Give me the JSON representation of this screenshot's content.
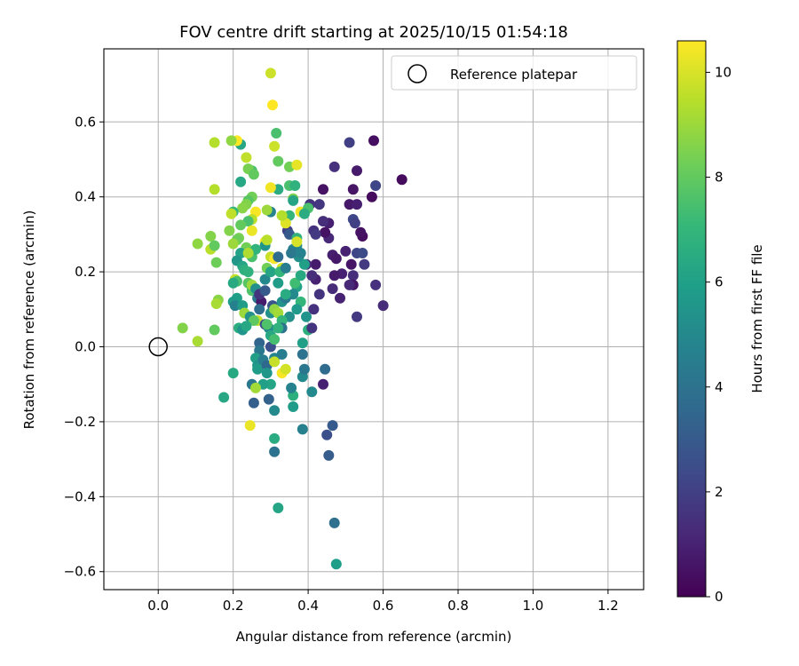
{
  "chart_data": {
    "type": "scatter",
    "title": "FOV centre drift starting at 2025/10/15 01:54:18",
    "xlabel": "Angular distance from reference (arcmin)",
    "ylabel": "Rotation from reference (arcmin)",
    "xlim": [
      -0.145,
      1.295
    ],
    "ylim": [
      -0.648,
      0.795
    ],
    "xticks": [
      0.0,
      0.2,
      0.4,
      0.6,
      0.8,
      1.0,
      1.2
    ],
    "xtick_labels": [
      "0.0",
      "0.2",
      "0.4",
      "0.6",
      "0.8",
      "1.0",
      "1.2"
    ],
    "yticks": [
      -0.6,
      -0.4,
      -0.2,
      0.0,
      0.2,
      0.4,
      0.6
    ],
    "ytick_labels": [
      "−0.6",
      "−0.4",
      "−0.2",
      "0.0",
      "0.2",
      "0.4",
      "0.6"
    ],
    "grid": true,
    "legend": {
      "position": "top-right",
      "entries": [
        "Reference platepar"
      ]
    },
    "reference_point": {
      "x": 0.0,
      "y": 0.0,
      "label": "Reference platepar"
    },
    "colorbar": {
      "label": "Hours from first FF file",
      "range": [
        0,
        10.6
      ],
      "ticks": [
        0,
        2,
        4,
        6,
        8,
        10
      ],
      "tick_labels": [
        "0",
        "2",
        "4",
        "6",
        "8",
        "10"
      ]
    },
    "colormap": [
      "#440154",
      "#482878",
      "#3e4a89",
      "#31688e",
      "#26828e",
      "#1f9e89",
      "#35b779",
      "#6ece58",
      "#b5de2b",
      "#fde725"
    ],
    "points": [
      [
        0.65,
        0.446,
        0.3
      ],
      [
        0.575,
        0.55,
        0.4
      ],
      [
        0.57,
        0.4,
        0.3
      ],
      [
        0.545,
        0.295,
        0.4
      ],
      [
        0.52,
        0.42,
        0.6
      ],
      [
        0.53,
        0.47,
        0.8
      ],
      [
        0.47,
        0.48,
        1.5
      ],
      [
        0.44,
        0.42,
        0.5
      ],
      [
        0.51,
        0.38,
        0.7
      ],
      [
        0.53,
        0.38,
        0.9
      ],
      [
        0.54,
        0.305,
        0.5
      ],
      [
        0.58,
        0.43,
        2.2
      ],
      [
        0.51,
        0.545,
        2.0
      ],
      [
        0.52,
        0.34,
        2.3
      ],
      [
        0.525,
        0.33,
        2.0
      ],
      [
        0.5,
        0.255,
        1.0
      ],
      [
        0.53,
        0.25,
        2.2
      ],
      [
        0.545,
        0.25,
        2.4
      ],
      [
        0.55,
        0.22,
        1.8
      ],
      [
        0.515,
        0.22,
        0.6
      ],
      [
        0.52,
        0.19,
        1.4
      ],
      [
        0.58,
        0.165,
        1.5
      ],
      [
        0.6,
        0.11,
        1.3
      ],
      [
        0.52,
        0.165,
        0.6
      ],
      [
        0.51,
        0.165,
        1.2
      ],
      [
        0.49,
        0.195,
        1.0
      ],
      [
        0.47,
        0.19,
        0.8
      ],
      [
        0.465,
        0.245,
        0.9
      ],
      [
        0.475,
        0.235,
        0.7
      ],
      [
        0.455,
        0.29,
        1.2
      ],
      [
        0.445,
        0.305,
        0.5
      ],
      [
        0.455,
        0.33,
        0.9
      ],
      [
        0.44,
        0.335,
        1.4
      ],
      [
        0.43,
        0.38,
        1.7
      ],
      [
        0.405,
        0.38,
        1.6
      ],
      [
        0.415,
        0.31,
        1.5
      ],
      [
        0.42,
        0.3,
        1.8
      ],
      [
        0.42,
        0.22,
        0.8
      ],
      [
        0.395,
        0.22,
        1.3
      ],
      [
        0.42,
        0.18,
        1.0
      ],
      [
        0.41,
        0.19,
        1.4
      ],
      [
        0.43,
        0.14,
        1.6
      ],
      [
        0.415,
        0.1,
        1.5
      ],
      [
        0.465,
        0.155,
        1.3
      ],
      [
        0.485,
        0.13,
        1.0
      ],
      [
        0.53,
        0.08,
        1.8
      ],
      [
        0.44,
        -0.1,
        1.0
      ],
      [
        0.45,
        -0.235,
        2.6
      ],
      [
        0.465,
        -0.21,
        3.0
      ],
      [
        0.455,
        -0.29,
        3.1
      ],
      [
        0.47,
        -0.47,
        3.9
      ],
      [
        0.475,
        -0.58,
        5.9
      ],
      [
        0.445,
        -0.06,
        3.7
      ],
      [
        0.41,
        -0.12,
        5.0
      ],
      [
        0.385,
        -0.22,
        4.6
      ],
      [
        0.36,
        -0.16,
        5.8
      ],
      [
        0.36,
        -0.13,
        6.7
      ],
      [
        0.355,
        -0.11,
        4.7
      ],
      [
        0.385,
        -0.08,
        5.0
      ],
      [
        0.39,
        -0.06,
        4.2
      ],
      [
        0.385,
        -0.02,
        4.0
      ],
      [
        0.385,
        0.01,
        6.0
      ],
      [
        0.4,
        0.045,
        6.7
      ],
      [
        0.41,
        0.05,
        1.6
      ],
      [
        0.395,
        0.08,
        5.5
      ],
      [
        0.38,
        0.12,
        7.0
      ],
      [
        0.37,
        0.1,
        5.7
      ],
      [
        0.37,
        0.16,
        6.1
      ],
      [
        0.36,
        0.14,
        5.0
      ],
      [
        0.365,
        0.17,
        7.3
      ],
      [
        0.38,
        0.19,
        6.4
      ],
      [
        0.39,
        0.22,
        6.0
      ],
      [
        0.375,
        0.24,
        5.3
      ],
      [
        0.37,
        0.27,
        5.0
      ],
      [
        0.36,
        0.26,
        4.6
      ],
      [
        0.355,
        0.25,
        4.2
      ],
      [
        0.345,
        0.31,
        2.0
      ],
      [
        0.35,
        0.3,
        3.0
      ],
      [
        0.37,
        0.29,
        6.8
      ],
      [
        0.37,
        0.28,
        10.0
      ],
      [
        0.38,
        0.36,
        10.4
      ],
      [
        0.4,
        0.37,
        7.5
      ],
      [
        0.39,
        0.355,
        6.5
      ],
      [
        0.35,
        0.35,
        7.0
      ],
      [
        0.34,
        0.33,
        10.1
      ],
      [
        0.33,
        0.35,
        9.4
      ],
      [
        0.3,
        0.36,
        4.8
      ],
      [
        0.29,
        0.365,
        9.0
      ],
      [
        0.32,
        0.42,
        6.5
      ],
      [
        0.3,
        0.425,
        10.4
      ],
      [
        0.35,
        0.43,
        7.5
      ],
      [
        0.365,
        0.43,
        6.8
      ],
      [
        0.36,
        0.395,
        8.5
      ],
      [
        0.36,
        0.39,
        6.2
      ],
      [
        0.35,
        0.48,
        8.3
      ],
      [
        0.37,
        0.485,
        10.2
      ],
      [
        0.32,
        0.495,
        8.0
      ],
      [
        0.31,
        0.535,
        9.8
      ],
      [
        0.315,
        0.57,
        7.5
      ],
      [
        0.305,
        0.645,
        10.6
      ],
      [
        0.3,
        0.73,
        9.8
      ],
      [
        0.22,
        0.54,
        6.3
      ],
      [
        0.21,
        0.55,
        10.6
      ],
      [
        0.195,
        0.55,
        8.8
      ],
      [
        0.15,
        0.545,
        9.4
      ],
      [
        0.235,
        0.505,
        9.6
      ],
      [
        0.25,
        0.47,
        7.5
      ],
      [
        0.24,
        0.475,
        8.4
      ],
      [
        0.22,
        0.44,
        6.3
      ],
      [
        0.255,
        0.46,
        8.0
      ],
      [
        0.15,
        0.42,
        9.4
      ],
      [
        0.25,
        0.4,
        8.3
      ],
      [
        0.24,
        0.39,
        7.8
      ],
      [
        0.235,
        0.38,
        8.6
      ],
      [
        0.225,
        0.37,
        8.7
      ],
      [
        0.2,
        0.36,
        7.1
      ],
      [
        0.195,
        0.355,
        9.6
      ],
      [
        0.26,
        0.36,
        10.5
      ],
      [
        0.25,
        0.34,
        9.5
      ],
      [
        0.24,
        0.335,
        7.5
      ],
      [
        0.22,
        0.325,
        8.0
      ],
      [
        0.19,
        0.31,
        8.6
      ],
      [
        0.215,
        0.29,
        8.4
      ],
      [
        0.21,
        0.285,
        8.2
      ],
      [
        0.2,
        0.275,
        9.0
      ],
      [
        0.285,
        0.28,
        10.5
      ],
      [
        0.285,
        0.27,
        5.5
      ],
      [
        0.25,
        0.31,
        10.3
      ],
      [
        0.14,
        0.295,
        8.6
      ],
      [
        0.105,
        0.275,
        8.8
      ],
      [
        0.14,
        0.26,
        9.5
      ],
      [
        0.15,
        0.27,
        8.0
      ],
      [
        0.155,
        0.225,
        8.2
      ],
      [
        0.235,
        0.265,
        8.3
      ],
      [
        0.22,
        0.25,
        6.1
      ],
      [
        0.21,
        0.23,
        5.6
      ],
      [
        0.225,
        0.215,
        6.2
      ],
      [
        0.25,
        0.24,
        7.5
      ],
      [
        0.23,
        0.205,
        6.7
      ],
      [
        0.24,
        0.2,
        6.8
      ],
      [
        0.205,
        0.18,
        9.7
      ],
      [
        0.21,
        0.175,
        7.5
      ],
      [
        0.2,
        0.17,
        6.4
      ],
      [
        0.24,
        0.17,
        7.8
      ],
      [
        0.25,
        0.15,
        7.6
      ],
      [
        0.25,
        0.165,
        9.0
      ],
      [
        0.26,
        0.155,
        5.3
      ],
      [
        0.265,
        0.13,
        4.2
      ],
      [
        0.275,
        0.12,
        0.8
      ],
      [
        0.27,
        0.1,
        3.8
      ],
      [
        0.21,
        0.13,
        6.0
      ],
      [
        0.2,
        0.12,
        5.8
      ],
      [
        0.205,
        0.11,
        4.6
      ],
      [
        0.225,
        0.11,
        5.8
      ],
      [
        0.23,
        0.09,
        9.0
      ],
      [
        0.245,
        0.08,
        5.4
      ],
      [
        0.265,
        0.07,
        9.7
      ],
      [
        0.255,
        0.07,
        7.9
      ],
      [
        0.285,
        0.06,
        2.5
      ],
      [
        0.295,
        0.05,
        5.0
      ],
      [
        0.29,
        0.06,
        7.6
      ],
      [
        0.215,
        0.05,
        6.6
      ],
      [
        0.225,
        0.045,
        5.5
      ],
      [
        0.235,
        0.055,
        6.3
      ],
      [
        0.16,
        0.125,
        8.7
      ],
      [
        0.155,
        0.115,
        9.2
      ],
      [
        0.065,
        0.05,
        8.6
      ],
      [
        0.105,
        0.015,
        9.2
      ],
      [
        0.15,
        0.045,
        8.0
      ],
      [
        0.3,
        0.09,
        5.3
      ],
      [
        0.305,
        0.11,
        2.8
      ],
      [
        0.31,
        0.1,
        8.8
      ],
      [
        0.32,
        0.09,
        9.1
      ],
      [
        0.33,
        0.12,
        5.4
      ],
      [
        0.34,
        0.13,
        4.3
      ],
      [
        0.34,
        0.14,
        6.5
      ],
      [
        0.35,
        0.08,
        5.3
      ],
      [
        0.33,
        0.07,
        7.0
      ],
      [
        0.33,
        0.05,
        4.0
      ],
      [
        0.32,
        0.05,
        6.8
      ],
      [
        0.3,
        0.03,
        6.3
      ],
      [
        0.3,
        0.0,
        2.6
      ],
      [
        0.31,
        0.02,
        7.4
      ],
      [
        0.27,
        0.01,
        3.4
      ],
      [
        0.27,
        -0.01,
        4.2
      ],
      [
        0.26,
        -0.03,
        6.0
      ],
      [
        0.265,
        -0.05,
        5.5
      ],
      [
        0.265,
        -0.06,
        5.8
      ],
      [
        0.28,
        -0.035,
        4.5
      ],
      [
        0.29,
        -0.05,
        3.6
      ],
      [
        0.29,
        -0.07,
        5.6
      ],
      [
        0.3,
        -0.1,
        6.2
      ],
      [
        0.31,
        -0.03,
        4.8
      ],
      [
        0.31,
        -0.04,
        9.7
      ],
      [
        0.33,
        -0.07,
        10.5
      ],
      [
        0.34,
        -0.06,
        9.9
      ],
      [
        0.33,
        -0.02,
        4.5
      ],
      [
        0.28,
        -0.1,
        6.0
      ],
      [
        0.25,
        -0.1,
        4.2
      ],
      [
        0.26,
        -0.11,
        9.1
      ],
      [
        0.295,
        -0.14,
        3.3
      ],
      [
        0.255,
        -0.15,
        3.2
      ],
      [
        0.31,
        -0.17,
        5.0
      ],
      [
        0.245,
        -0.21,
        10.3
      ],
      [
        0.31,
        -0.245,
        6.5
      ],
      [
        0.31,
        -0.28,
        4.0
      ],
      [
        0.32,
        -0.43,
        6.2
      ],
      [
        0.2,
        -0.07,
        6.4
      ],
      [
        0.175,
        -0.135,
        6.3
      ],
      [
        0.27,
        0.14,
        1.6
      ],
      [
        0.285,
        0.15,
        3.0
      ],
      [
        0.285,
        0.18,
        5.0
      ],
      [
        0.29,
        0.21,
        8.3
      ],
      [
        0.3,
        0.2,
        6.2
      ],
      [
        0.3,
        0.24,
        9.7
      ],
      [
        0.31,
        0.235,
        10.5
      ],
      [
        0.32,
        0.24,
        3.7
      ],
      [
        0.33,
        0.21,
        9.9
      ],
      [
        0.325,
        0.2,
        7.0
      ],
      [
        0.32,
        0.17,
        5.8
      ],
      [
        0.34,
        0.21,
        4.5
      ],
      [
        0.38,
        0.25,
        4.7
      ],
      [
        0.29,
        0.285,
        9.5
      ],
      [
        0.26,
        0.26,
        6.9
      ],
      [
        0.24,
        0.25,
        9.3
      ]
    ]
  }
}
